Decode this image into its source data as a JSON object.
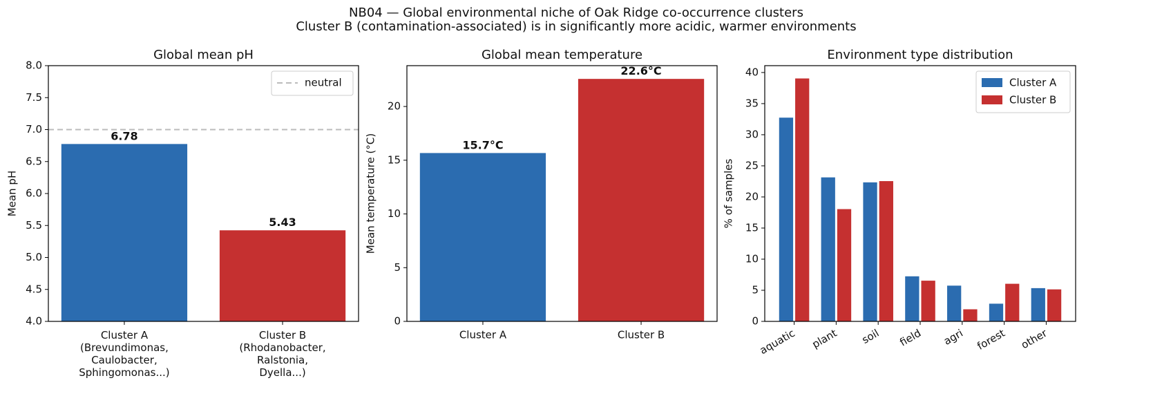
{
  "title": "NB04 — Global environmental niche of Oak Ridge co-occurrence clusters",
  "subtitle": "Cluster B (contamination-associated) is in significantly more acidic, warmer environments",
  "chart_data": [
    {
      "type": "bar",
      "title": "Global mean pH",
      "ylabel": "Mean pH",
      "categories": [
        "Cluster A\n(Brevundimonas,\nCaulobacter,\nSphingomonas...)",
        "Cluster B\n(Rhodanobacter,\nRalstonia,\nDyella...)"
      ],
      "values": [
        6.78,
        5.43
      ],
      "colors": [
        "#2b6cb0",
        "#c53030"
      ],
      "ylim": [
        4,
        8
      ],
      "yticks": [
        {
          "value": 4,
          "label": "4.0"
        },
        {
          "value": 4.5,
          "label": "4.5"
        },
        {
          "value": 5,
          "label": "5.0"
        },
        {
          "value": 5.5,
          "label": "5.5"
        },
        {
          "value": 6,
          "label": "6.0"
        },
        {
          "value": 6.5,
          "label": "6.5"
        },
        {
          "value": 7,
          "label": "7.0"
        },
        {
          "value": 7.5,
          "label": "7.5"
        },
        {
          "value": 8,
          "label": "8.0"
        }
      ],
      "reference_line": {
        "value": 7,
        "label": "neutral",
        "color": "#bbbbbb"
      },
      "legend": "upper right"
    },
    {
      "type": "bar",
      "title": "Global mean temperature",
      "ylabel": "Mean temperature (°C)",
      "categories": [
        "Cluster A",
        "Cluster B"
      ],
      "values": [
        15.7,
        22.6
      ],
      "value_labels": [
        "15.7°C",
        "22.6°C"
      ],
      "colors": [
        "#2b6cb0",
        "#c53030"
      ],
      "ylim": [
        0,
        23.8
      ],
      "yticks": [
        0,
        5,
        10,
        15,
        20
      ]
    },
    {
      "type": "bar",
      "title": "Environment type distribution",
      "ylabel": "% of samples",
      "categories": [
        "aquatic",
        "plant",
        "soil",
        "field",
        "agri",
        "forest",
        "other"
      ],
      "series": [
        {
          "name": "Cluster A",
          "color": "#2b6cb0",
          "values": [
            32.8,
            23.2,
            22.4,
            7.3,
            5.8,
            2.9,
            5.4
          ]
        },
        {
          "name": "Cluster B",
          "color": "#c53030",
          "values": [
            39.1,
            18.1,
            22.6,
            6.6,
            2.0,
            6.1,
            5.2
          ]
        }
      ],
      "ylim": [
        0,
        41.1
      ],
      "yticks": [
        0,
        5,
        10,
        15,
        20,
        25,
        30,
        35,
        40
      ],
      "legend": "upper right"
    }
  ]
}
